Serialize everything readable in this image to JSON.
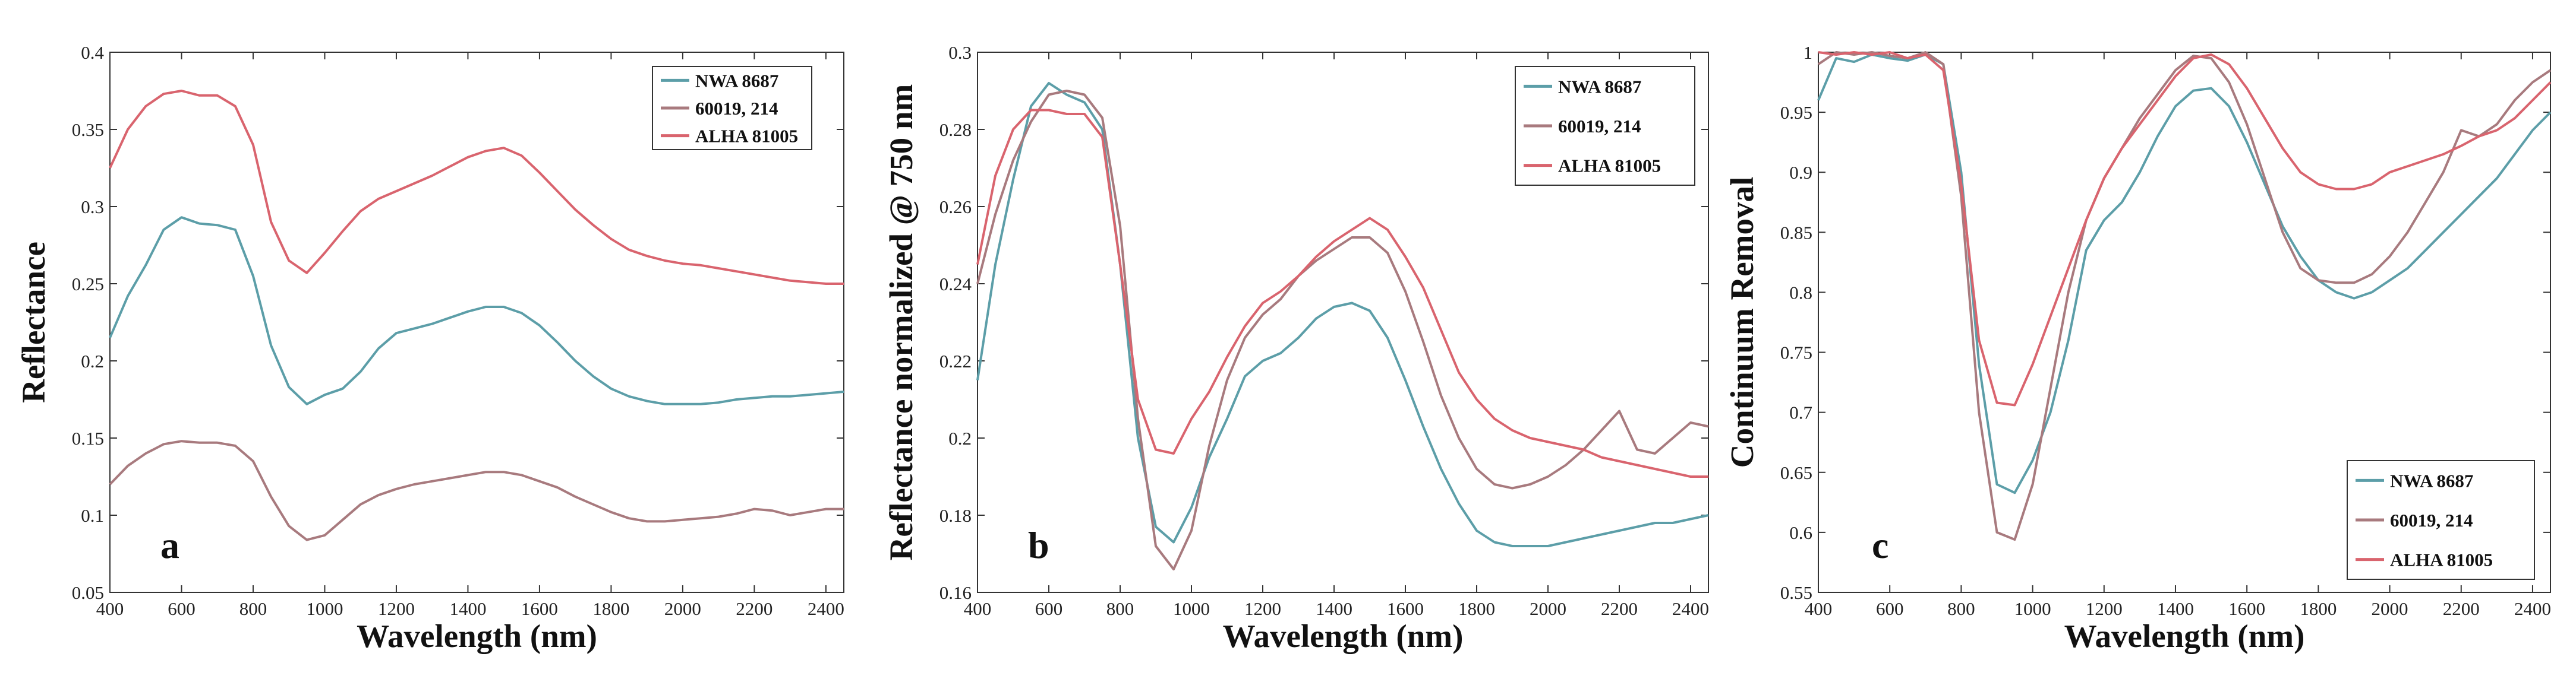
{
  "chart_data": [
    {
      "type": "line",
      "panel_label": "a",
      "xlabel": "Wavelength (nm)",
      "ylabel": "Reflectance",
      "xlim": [
        400,
        2450
      ],
      "ylim": [
        0.05,
        0.4
      ],
      "x_ticks": [
        400,
        600,
        800,
        1000,
        1200,
        1400,
        1600,
        1800,
        2000,
        2200,
        2400
      ],
      "y_ticks": [
        0.05,
        0.1,
        0.15,
        0.2,
        0.25,
        0.3,
        0.35,
        0.4
      ],
      "y_tick_labels": [
        "0.05",
        "0.1",
        "0.15",
        "0.2",
        "0.25",
        "0.3",
        "0.35",
        "0.4"
      ],
      "legend_position": "top-right",
      "x": [
        400,
        450,
        500,
        550,
        600,
        650,
        700,
        750,
        800,
        850,
        900,
        950,
        1000,
        1050,
        1100,
        1150,
        1200,
        1250,
        1300,
        1350,
        1400,
        1450,
        1500,
        1550,
        1600,
        1650,
        1700,
        1750,
        1800,
        1850,
        1900,
        1950,
        2000,
        2050,
        2100,
        2150,
        2200,
        2250,
        2300,
        2350,
        2400,
        2450
      ],
      "series": [
        {
          "name": "NWA 8687",
          "color": "#5c9ea8",
          "values": [
            0.215,
            0.242,
            0.262,
            0.285,
            0.293,
            0.289,
            0.288,
            0.285,
            0.255,
            0.21,
            0.183,
            0.172,
            0.178,
            0.182,
            0.193,
            0.208,
            0.218,
            0.221,
            0.224,
            0.228,
            0.232,
            0.235,
            0.235,
            0.231,
            0.223,
            0.212,
            0.2,
            0.19,
            0.182,
            0.177,
            0.174,
            0.172,
            0.172,
            0.172,
            0.173,
            0.175,
            0.176,
            0.177,
            0.177,
            0.178,
            0.179,
            0.18
          ]
        },
        {
          "name": "60019, 214",
          "color": "#a87a7e",
          "values": [
            0.12,
            0.132,
            0.14,
            0.146,
            0.148,
            0.147,
            0.147,
            0.145,
            0.135,
            0.112,
            0.093,
            0.084,
            0.087,
            0.097,
            0.107,
            0.113,
            0.117,
            0.12,
            0.122,
            0.124,
            0.126,
            0.128,
            0.128,
            0.126,
            0.122,
            0.118,
            0.112,
            0.107,
            0.102,
            0.098,
            0.096,
            0.096,
            0.097,
            0.098,
            0.099,
            0.101,
            0.104,
            0.103,
            0.1,
            0.102,
            0.104,
            0.104
          ]
        },
        {
          "name": "ALHA 81005",
          "color": "#d9646e",
          "values": [
            0.325,
            0.35,
            0.365,
            0.373,
            0.375,
            0.372,
            0.372,
            0.365,
            0.34,
            0.29,
            0.265,
            0.257,
            0.27,
            0.284,
            0.297,
            0.305,
            0.31,
            0.315,
            0.32,
            0.326,
            0.332,
            0.336,
            0.338,
            0.333,
            0.322,
            0.31,
            0.298,
            0.288,
            0.279,
            0.272,
            0.268,
            0.265,
            0.263,
            0.262,
            0.26,
            0.258,
            0.256,
            0.254,
            0.252,
            0.251,
            0.25,
            0.25
          ]
        }
      ]
    },
    {
      "type": "line",
      "panel_label": "b",
      "xlabel": "Wavelength (nm)",
      "ylabel": "Reflectance normalized @ 750 nm",
      "xlim": [
        400,
        2450
      ],
      "ylim": [
        0.16,
        0.3
      ],
      "x_ticks": [
        400,
        600,
        800,
        1000,
        1200,
        1400,
        1600,
        1800,
        2000,
        2200,
        2400
      ],
      "y_ticks": [
        0.16,
        0.18,
        0.2,
        0.22,
        0.24,
        0.26,
        0.28,
        0.3
      ],
      "y_tick_labels": [
        "0.16",
        "0.18",
        "0.2",
        "0.22",
        "0.24",
        "0.26",
        "0.28",
        "0.3"
      ],
      "legend_position": "top-right",
      "x": [
        400,
        450,
        500,
        550,
        600,
        650,
        700,
        750,
        800,
        850,
        900,
        950,
        1000,
        1050,
        1100,
        1150,
        1200,
        1250,
        1300,
        1350,
        1400,
        1450,
        1500,
        1550,
        1600,
        1650,
        1700,
        1750,
        1800,
        1850,
        1900,
        1950,
        2000,
        2050,
        2100,
        2150,
        2200,
        2250,
        2300,
        2350,
        2400,
        2450
      ],
      "series": [
        {
          "name": "NWA 8687",
          "color": "#5c9ea8",
          "values": [
            0.215,
            0.245,
            0.267,
            0.286,
            0.292,
            0.289,
            0.287,
            0.28,
            0.245,
            0.2,
            0.177,
            0.173,
            0.182,
            0.195,
            0.205,
            0.216,
            0.22,
            0.222,
            0.226,
            0.231,
            0.234,
            0.235,
            0.233,
            0.226,
            0.215,
            0.203,
            0.192,
            0.183,
            0.176,
            0.173,
            0.172,
            0.172,
            0.172,
            0.173,
            0.174,
            0.175,
            0.176,
            0.177,
            0.178,
            0.178,
            0.179,
            0.18
          ]
        },
        {
          "name": "60019, 214",
          "color": "#a87a7e",
          "values": [
            0.24,
            0.258,
            0.272,
            0.282,
            0.289,
            0.29,
            0.289,
            0.283,
            0.255,
            0.205,
            0.172,
            0.166,
            0.176,
            0.198,
            0.215,
            0.226,
            0.232,
            0.236,
            0.242,
            0.246,
            0.249,
            0.252,
            0.252,
            0.248,
            0.238,
            0.225,
            0.211,
            0.2,
            0.192,
            0.188,
            0.187,
            0.188,
            0.19,
            0.193,
            0.197,
            0.202,
            0.207,
            0.197,
            0.196,
            0.2,
            0.204,
            0.203
          ]
        },
        {
          "name": "ALHA 81005",
          "color": "#d9646e",
          "values": [
            0.245,
            0.268,
            0.28,
            0.285,
            0.285,
            0.284,
            0.284,
            0.278,
            0.245,
            0.21,
            0.197,
            0.196,
            0.205,
            0.212,
            0.221,
            0.229,
            0.235,
            0.238,
            0.242,
            0.247,
            0.251,
            0.254,
            0.257,
            0.254,
            0.247,
            0.239,
            0.228,
            0.217,
            0.21,
            0.205,
            0.202,
            0.2,
            0.199,
            0.198,
            0.197,
            0.195,
            0.194,
            0.193,
            0.192,
            0.191,
            0.19,
            0.19
          ]
        }
      ]
    },
    {
      "type": "line",
      "panel_label": "c",
      "xlabel": "Wavelength (nm)",
      "ylabel": "Continuum Removal",
      "xlim": [
        400,
        2450
      ],
      "ylim": [
        0.55,
        1
      ],
      "x_ticks": [
        400,
        600,
        800,
        1000,
        1200,
        1400,
        1600,
        1800,
        2000,
        2200,
        2400
      ],
      "y_ticks": [
        0.55,
        0.6,
        0.65,
        0.7,
        0.75,
        0.8,
        0.85,
        0.9,
        0.95,
        1
      ],
      "y_tick_labels": [
        "0.55",
        "0.6",
        "0.65",
        "0.7",
        "0.75",
        "0.8",
        "0.85",
        "0.9",
        "0.95",
        "1"
      ],
      "legend_position": "bottom-right",
      "x": [
        400,
        450,
        500,
        550,
        600,
        650,
        700,
        750,
        800,
        850,
        900,
        950,
        1000,
        1050,
        1100,
        1150,
        1200,
        1250,
        1300,
        1350,
        1400,
        1450,
        1500,
        1550,
        1600,
        1650,
        1700,
        1750,
        1800,
        1850,
        1900,
        1950,
        2000,
        2050,
        2100,
        2150,
        2200,
        2250,
        2300,
        2350,
        2400,
        2450
      ],
      "series": [
        {
          "name": "NWA 8687",
          "color": "#5c9ea8",
          "values": [
            0.96,
            0.995,
            0.992,
            0.998,
            0.995,
            0.993,
            0.998,
            0.99,
            0.9,
            0.74,
            0.64,
            0.633,
            0.66,
            0.7,
            0.76,
            0.835,
            0.86,
            0.875,
            0.9,
            0.93,
            0.955,
            0.968,
            0.97,
            0.955,
            0.925,
            0.89,
            0.855,
            0.83,
            0.81,
            0.8,
            0.795,
            0.8,
            0.81,
            0.82,
            0.835,
            0.85,
            0.865,
            0.88,
            0.895,
            0.915,
            0.935,
            0.95
          ]
        },
        {
          "name": "60019, 214",
          "color": "#a87a7e",
          "values": [
            0.99,
            1.0,
            0.998,
            1.0,
            0.997,
            0.995,
            1.0,
            0.99,
            0.88,
            0.7,
            0.6,
            0.594,
            0.64,
            0.72,
            0.8,
            0.86,
            0.895,
            0.92,
            0.945,
            0.965,
            0.985,
            0.997,
            0.995,
            0.975,
            0.94,
            0.895,
            0.85,
            0.82,
            0.81,
            0.808,
            0.808,
            0.815,
            0.83,
            0.85,
            0.875,
            0.9,
            0.935,
            0.93,
            0.94,
            0.96,
            0.975,
            0.985
          ]
        },
        {
          "name": "ALHA 81005",
          "color": "#d9646e",
          "values": [
            1.0,
            0.998,
            1.0,
            0.998,
            1.0,
            0.995,
            0.998,
            0.985,
            0.89,
            0.76,
            0.708,
            0.706,
            0.74,
            0.78,
            0.82,
            0.86,
            0.895,
            0.92,
            0.94,
            0.96,
            0.98,
            0.995,
            0.998,
            0.99,
            0.97,
            0.945,
            0.92,
            0.9,
            0.89,
            0.886,
            0.886,
            0.89,
            0.9,
            0.905,
            0.91,
            0.915,
            0.922,
            0.93,
            0.935,
            0.945,
            0.96,
            0.975
          ]
        }
      ]
    }
  ]
}
